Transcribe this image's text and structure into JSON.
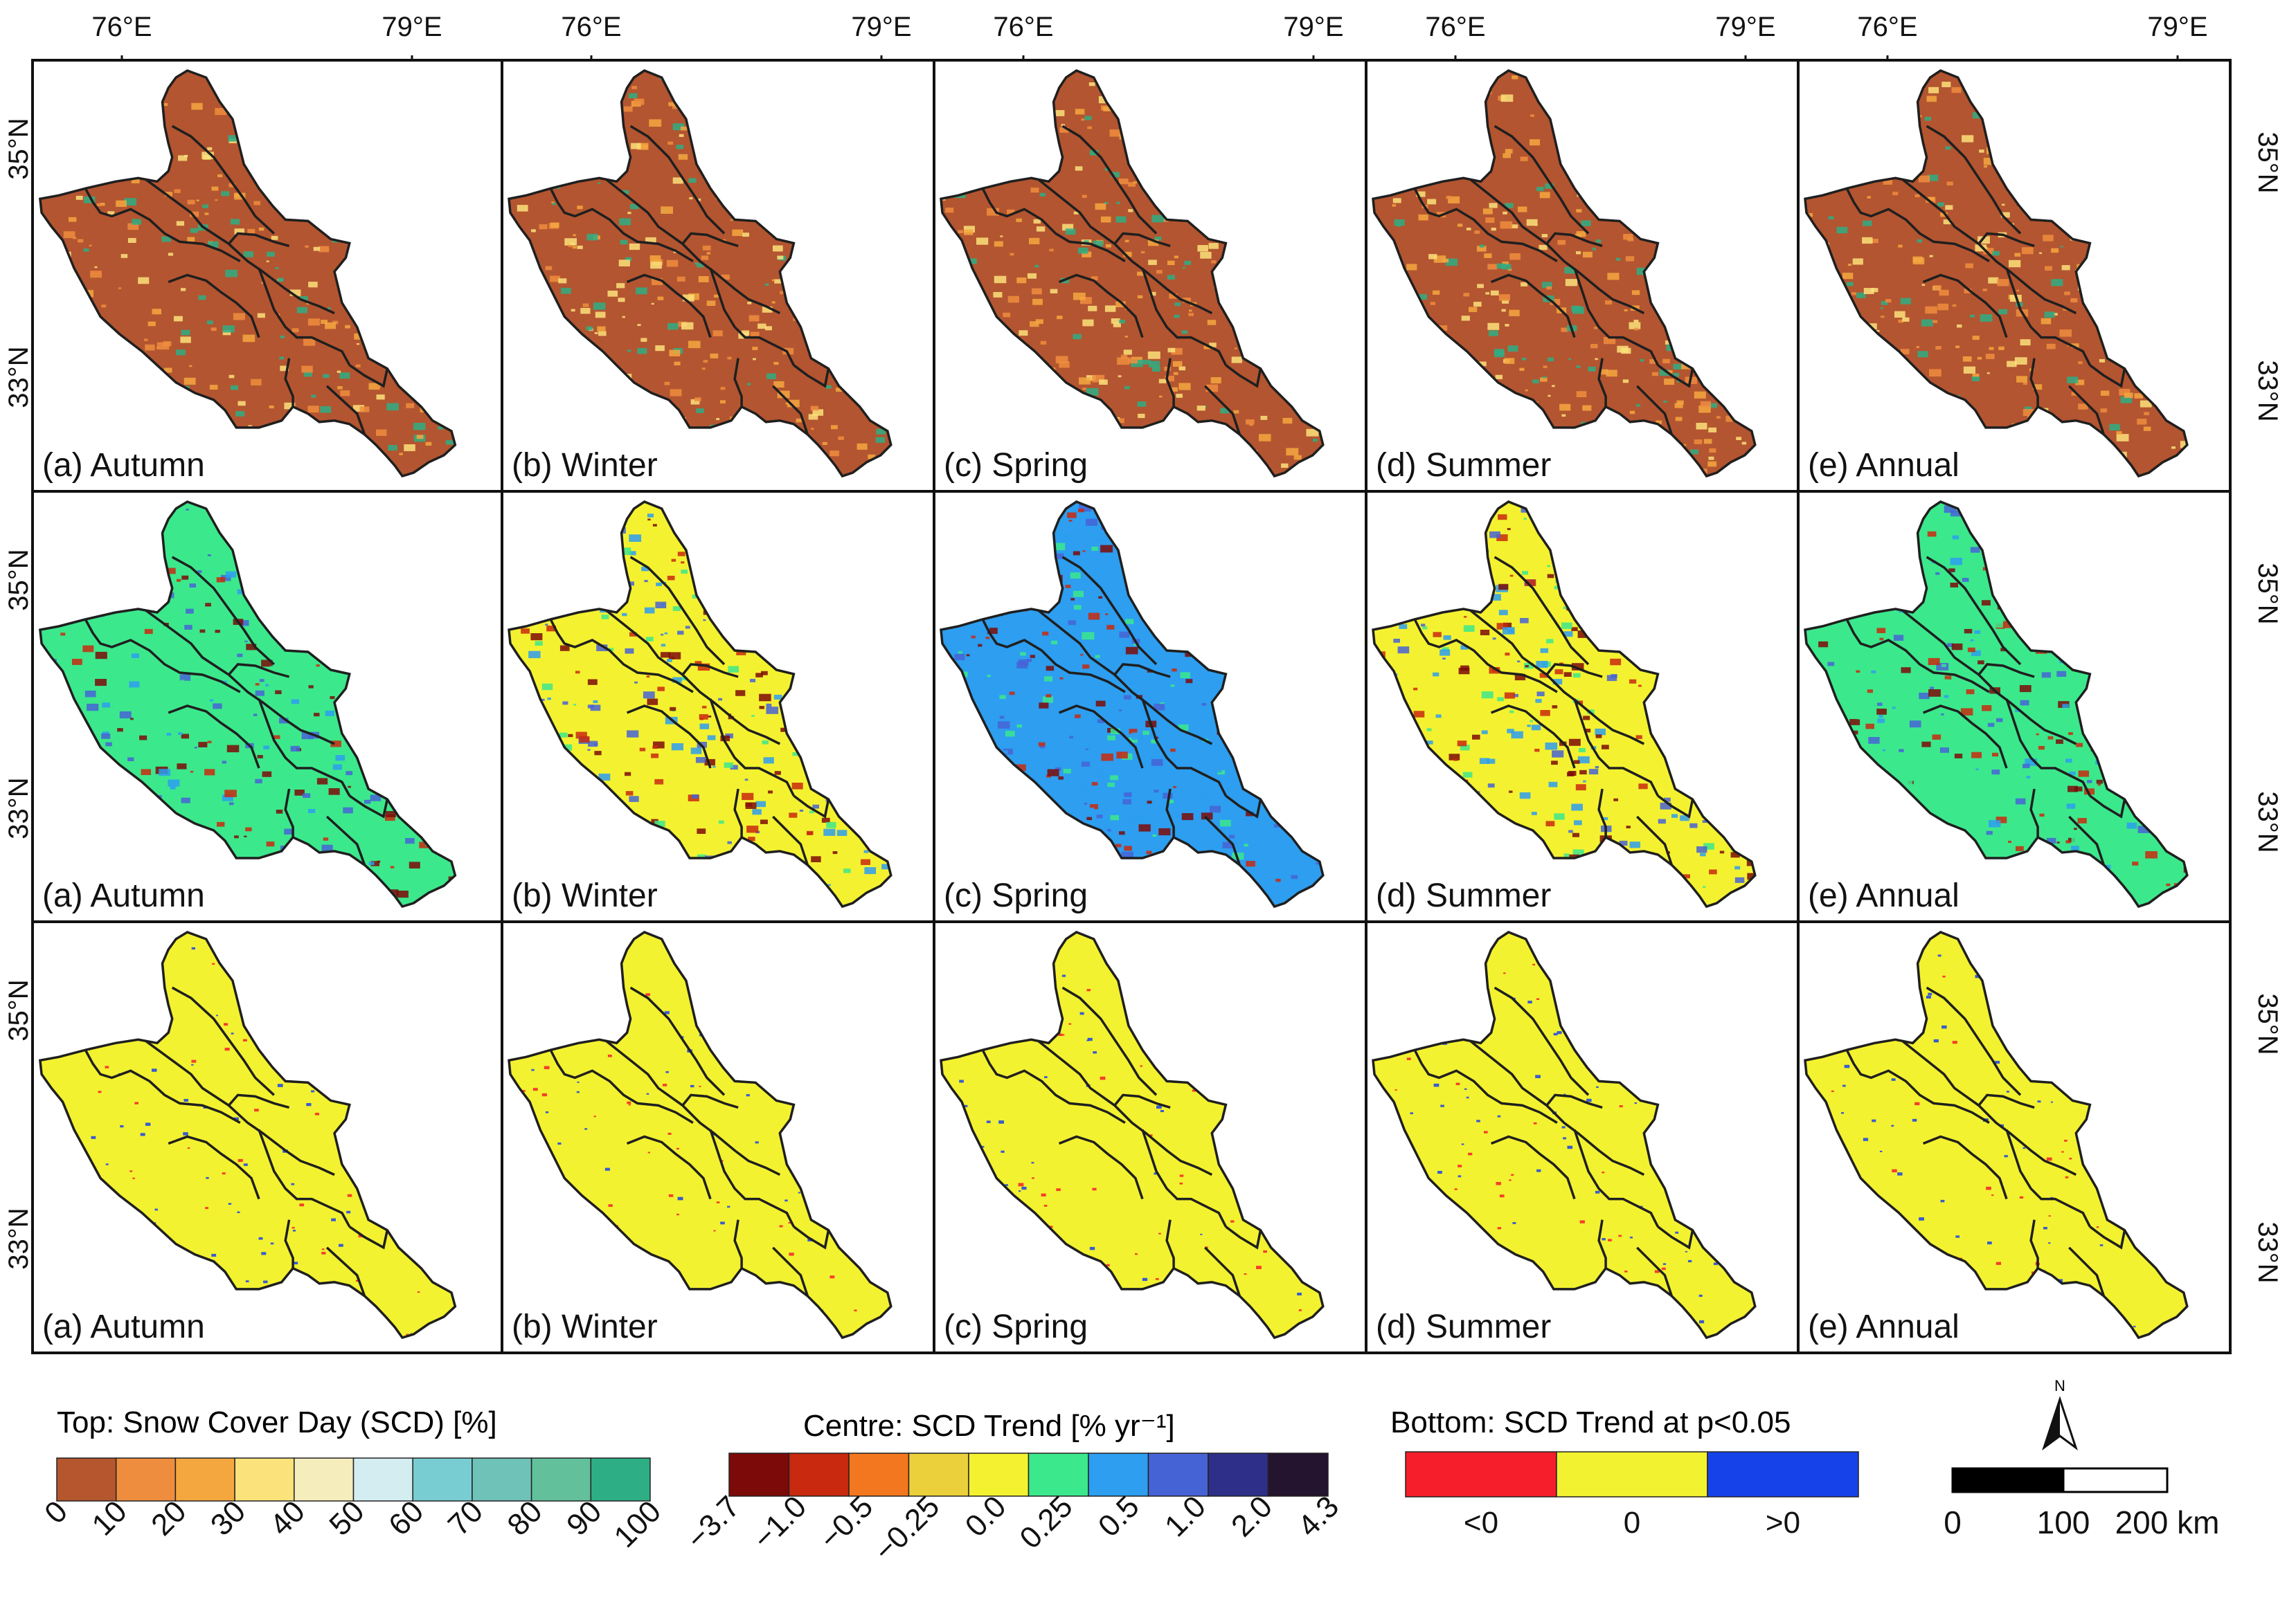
{
  "figure": {
    "top_ticks": [
      "76°E",
      "79°E"
    ],
    "left_ticks": [
      "35°N",
      "33°N"
    ],
    "right_ticks": [
      "35°N",
      "33°N"
    ],
    "panels": [
      [
        "(a) Autumn",
        "(b) Winter",
        "(c) Spring",
        "(d) Summer",
        "(e) Annual"
      ],
      [
        "(a) Autumn",
        "(b) Winter",
        "(c) Spring",
        "(d) Summer",
        "(e) Annual"
      ],
      [
        "(a) Autumn",
        "(b) Winter",
        "(c) Spring",
        "(d) Summer",
        "(e) Annual"
      ]
    ]
  },
  "legend_scd": {
    "title": "Top: Snow Cover Day (SCD) [%]",
    "colors": [
      "#b5562e",
      "#ee8d3e",
      "#f5a73f",
      "#fbe27a",
      "#f6edbc",
      "#d3edf1",
      "#77cdd1",
      "#6fc2b8",
      "#62c09a",
      "#2eae84"
    ],
    "labels": [
      "0",
      "10",
      "20",
      "30",
      "40",
      "50",
      "60",
      "70",
      "80",
      "90",
      "100"
    ]
  },
  "legend_trend": {
    "title": "Centre: SCD Trend [% yr⁻¹]",
    "colors": [
      "#7c0a08",
      "#c9290e",
      "#f2771e",
      "#ecd03b",
      "#f4f230",
      "#3ce88c",
      "#2d9ef0",
      "#4663d6",
      "#2d2f89",
      "#24142f"
    ],
    "labels": [
      "−3.7",
      "−1.0",
      "−0.5",
      "−0.25",
      "0.0",
      "0.25",
      "0.5",
      "1.0",
      "2.0",
      "4.3"
    ]
  },
  "legend_sig": {
    "title": "Bottom: SCD Trend at p<0.05",
    "colors": [
      "#f51e2a",
      "#f3f230",
      "#1642ea"
    ],
    "labels": [
      "<0",
      "0",
      ">0"
    ]
  },
  "scalebar": {
    "north_label": "N",
    "labels": [
      "0",
      "100",
      "200 km"
    ]
  },
  "render": {
    "row_base": [
      "#b35530",
      "#35a87d",
      "#f3f230"
    ],
    "row_speckles": [
      [
        "#ee8d3e",
        "#f5a73f",
        "#fbe27a",
        "#2eae84"
      ],
      [
        "#2d9ef0",
        "#4663d6",
        "#c9290e",
        "#7c0a08",
        "#3ce88c"
      ],
      [
        "#1642ea",
        "#f51e2a"
      ]
    ],
    "trend_bases": [
      "#3ce88c",
      "#f4f230",
      "#2d9ef0",
      "#f4f230",
      "#3ce88c"
    ],
    "outline": "#1f1f1f"
  }
}
